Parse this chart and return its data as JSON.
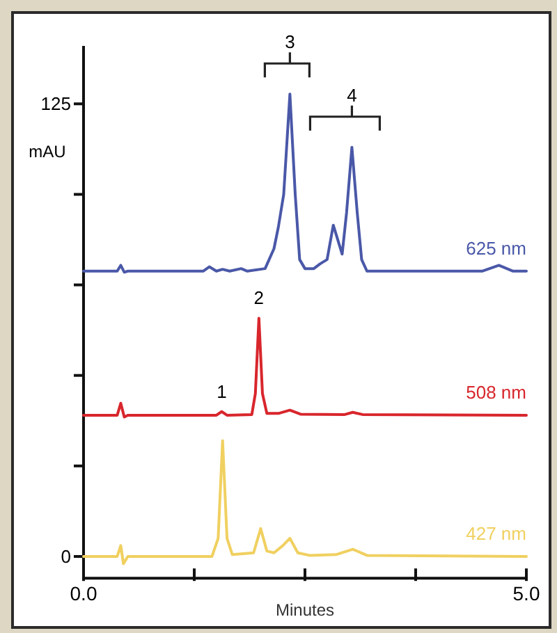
{
  "chart_data": {
    "type": "line",
    "xlabel": "Minutes",
    "ylabel": "mAU",
    "xlim": [
      0,
      5
    ],
    "ylim": [
      -6,
      141
    ],
    "xticks": [
      {
        "value": 0,
        "label": "0.0"
      },
      {
        "value": 1.25,
        "label": null
      },
      {
        "value": 2.5,
        "label": null
      },
      {
        "value": 3.75,
        "label": null
      },
      {
        "value": 5,
        "label": "5.0"
      }
    ],
    "yticks": [
      0,
      {
        "value": 25,
        "label": null
      },
      {
        "value": 50,
        "label": null
      },
      {
        "value": 75,
        "label": null
      },
      {
        "value": 100,
        "label": null
      },
      125
    ],
    "grid": false,
    "marker": "none",
    "line_style": "solid",
    "series": [
      {
        "name": "625 nm",
        "color": "#4a58a8",
        "x": [
          0,
          0.38,
          0.42,
          0.46,
          0.5,
          1.35,
          1.42,
          1.5,
          1.57,
          1.65,
          1.78,
          1.85,
          2.05,
          2.15,
          2.2,
          2.26,
          2.33,
          2.39,
          2.44,
          2.5,
          2.6,
          2.67,
          2.75,
          2.82,
          2.92,
          2.97,
          3.03,
          3.09,
          3.14,
          3.2,
          4.5,
          4.69,
          4.85,
          5
        ],
        "values": [
          78.8,
          78.8,
          80.4,
          78.5,
          78.8,
          78.8,
          80,
          78.8,
          79.3,
          78.8,
          79.5,
          78.8,
          79.5,
          85,
          91,
          100,
          127.7,
          100,
          82,
          79.5,
          79.5,
          80.8,
          82,
          91.5,
          83.5,
          95,
          113,
          95,
          82,
          78.8,
          78.8,
          80.4,
          78.8,
          78.8
        ]
      },
      {
        "name": "508 nm",
        "color": "#d8262c",
        "x": [
          0,
          0.38,
          0.42,
          0.46,
          0.5,
          1.5,
          1.56,
          1.62,
          1.9,
          1.94,
          1.98,
          2.02,
          2.07,
          2.2,
          2.33,
          2.45,
          2.95,
          3.04,
          3.15,
          5
        ],
        "values": [
          39,
          39,
          42.3,
          38.5,
          39,
          39,
          40,
          39,
          39.2,
          45,
          65.8,
          45,
          39.5,
          39.5,
          40.4,
          39.3,
          39.2,
          39.8,
          39.2,
          39
        ]
      },
      {
        "name": "427 nm",
        "color": "#f0d060",
        "x": [
          0,
          0.38,
          0.42,
          0.45,
          0.5,
          1.45,
          1.52,
          1.57,
          1.62,
          1.68,
          1.92,
          2.0,
          2.07,
          2.15,
          2.25,
          2.33,
          2.42,
          2.55,
          2.85,
          3.04,
          3.2,
          5
        ],
        "values": [
          0,
          0,
          3,
          -2,
          0,
          0,
          5,
          32,
          5,
          0.5,
          1,
          7.7,
          1.5,
          1,
          3,
          5,
          1,
          0.3,
          0.5,
          2,
          0.3,
          0
        ]
      }
    ],
    "annotations": [
      {
        "text": "1",
        "x": 1.56,
        "y": 40
      },
      {
        "text": "2",
        "x": 1.98,
        "y": 65.8
      },
      {
        "text": "3",
        "x": 2.33,
        "y": 127.7
      },
      {
        "text": "4",
        "x": 3.03,
        "y": 113
      }
    ]
  }
}
